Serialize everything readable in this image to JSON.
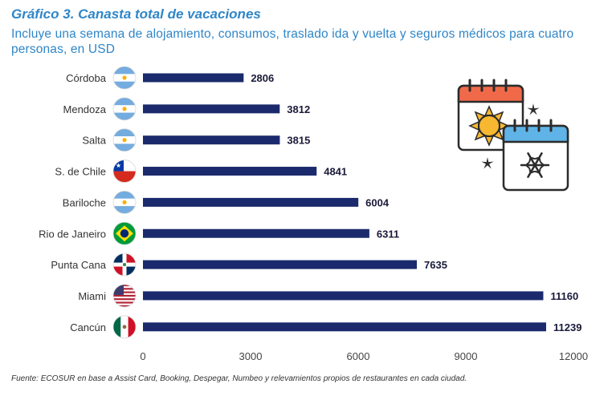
{
  "chart_data": {
    "type": "bar",
    "orientation": "horizontal",
    "title": "Gráfico 3. Canasta total de vacaciones",
    "subtitle": "Incluye una semana de alojamiento, consumos, traslado ida y vuelta y seguros médicos para cuatro personas, en USD",
    "categories": [
      "Córdoba",
      "Mendoza",
      "Salta",
      "S. de Chile",
      "Bariloche",
      "Rio de Janeiro",
      "Punta Cana",
      "Miami",
      "Cancún"
    ],
    "values": [
      2806,
      3812,
      3815,
      4841,
      6004,
      6311,
      7635,
      11160,
      11239
    ],
    "value_labels": [
      "2806",
      "3812",
      "3815",
      "4841",
      "6004",
      "6311",
      "7635",
      "11160",
      "11239"
    ],
    "flags": [
      "flag-argentina",
      "flag-argentina",
      "flag-argentina",
      "flag-chile",
      "flag-argentina",
      "flag-brazil",
      "flag-dominican-republic",
      "flag-usa",
      "flag-mexico"
    ],
    "xticks": [
      0,
      3000,
      6000,
      9000,
      12000
    ],
    "xtick_labels": [
      "0",
      "3000",
      "6000",
      "9000",
      "12000"
    ],
    "xlim": [
      0,
      12000
    ],
    "grid": false,
    "bar_color": "#1a2a6c",
    "source": "Fuente: ECOSUR en base a Assist Card, Booking, Despegar, Numbeo y relevamientos propios de restaurantes en cada ciudad."
  },
  "decoration": {
    "icon": "calendar-summer-winter-icon"
  },
  "colors": {
    "title": "#2f86c8",
    "bar": "#1a2a6c",
    "calendar_sun": "#f06a4a",
    "calendar_snow": "#5fb3e6",
    "sun": "#f7b731"
  }
}
